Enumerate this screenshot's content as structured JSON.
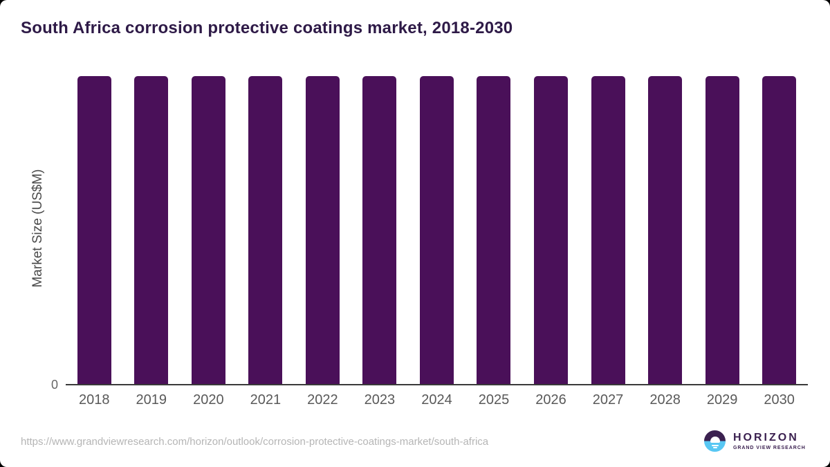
{
  "header": {
    "title": "South Africa corrosion protective coatings market, 2018-2030"
  },
  "chart_data": {
    "type": "bar",
    "title": "South Africa corrosion protective coatings market, 2018-2030",
    "categories": [
      "2018",
      "2019",
      "2020",
      "2021",
      "2022",
      "2023",
      "2024",
      "2025",
      "2026",
      "2027",
      "2028",
      "2029",
      "2030"
    ],
    "values": [
      1,
      1,
      1,
      1,
      1,
      1,
      1,
      1,
      1,
      1,
      1,
      1,
      1
    ],
    "values_labeled": false,
    "xlabel": "",
    "ylabel": "Market Size (US$M)",
    "y_axis_ticks": [
      "0"
    ],
    "ylim_display": "all bars equal full height, numeric scale not shown",
    "grid": false,
    "legend": false,
    "bar_color": "#4a1059",
    "axis_line_color": "#3a3a3a",
    "tick_label_color": "#595959"
  },
  "footer": {
    "url": "https://www.grandviewresearch.com/horizon/outlook/corrosion-protective-coatings-market/south-africa",
    "logo": {
      "name": "HORIZON",
      "subtitle": "GRAND VIEW RESEARCH",
      "purple": "#3b2150",
      "blue": "#58c7f3"
    }
  },
  "colors": {
    "title": "#2e1a47",
    "card_background": "#ffffff",
    "page_background": "#000000",
    "url_text": "#b5b5b5"
  }
}
